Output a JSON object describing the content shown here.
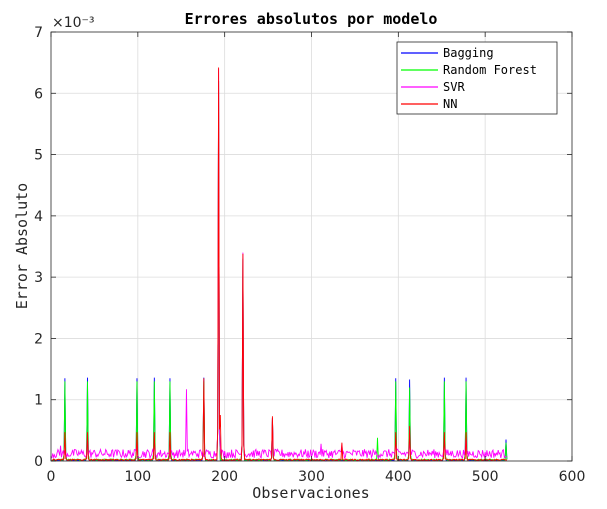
{
  "chart_data": {
    "type": "line",
    "title": "Errores absolutos por modelo",
    "xlabel": "Observaciones",
    "ylabel": "Error Absoluto",
    "y_exponent_label": "×10⁻³",
    "xlim": [
      0,
      600
    ],
    "ylim": [
      0,
      0.007
    ],
    "x_ticks": [
      0,
      100,
      200,
      300,
      400,
      500,
      600
    ],
    "y_ticks": [
      0,
      1,
      2,
      3,
      4,
      5,
      6,
      7
    ],
    "y_tick_scale": 0.001,
    "grid": true,
    "legend_position": "top-right",
    "n_points": 525,
    "series": [
      {
        "name": "Bagging",
        "color": "#0000ff",
        "baseline": 1e-05,
        "spikes": [
          [
            15,
            0.00135
          ],
          [
            41,
            0.00136
          ],
          [
            98,
            0.00135
          ],
          [
            118,
            0.00136
          ],
          [
            136,
            0.00135
          ],
          [
            175,
            0.00136
          ],
          [
            192,
            0.0062
          ],
          [
            220,
            0.0033
          ],
          [
            254,
            0.0007
          ],
          [
            396,
            0.00135
          ],
          [
            412,
            0.00133
          ],
          [
            452,
            0.00136
          ],
          [
            477,
            0.00136
          ],
          [
            523,
            0.00035
          ]
        ]
      },
      {
        "name": "Random Forest",
        "color": "#00ff00",
        "baseline": 2e-05,
        "spikes": [
          [
            15,
            0.0013
          ],
          [
            41,
            0.0013
          ],
          [
            98,
            0.0013
          ],
          [
            118,
            0.0013
          ],
          [
            136,
            0.0013
          ],
          [
            175,
            0.0013
          ],
          [
            192,
            0.0062
          ],
          [
            220,
            0.0033
          ],
          [
            254,
            0.0007
          ],
          [
            375,
            0.00038
          ],
          [
            396,
            0.0013
          ],
          [
            412,
            0.0012
          ],
          [
            452,
            0.0013
          ],
          [
            477,
            0.0013
          ],
          [
            523,
            0.0003
          ]
        ]
      },
      {
        "name": "SVR",
        "color": "#ff00ff",
        "baseline": 0.00012,
        "spikes": [
          [
            10,
            0.00025
          ],
          [
            41,
            0.00035
          ],
          [
            98,
            0.0003
          ],
          [
            118,
            0.0003
          ],
          [
            155,
            0.00117
          ],
          [
            192,
            0.0064
          ],
          [
            220,
            0.0034
          ],
          [
            254,
            0.0007
          ],
          [
            310,
            0.00028
          ],
          [
            334,
            0.00027
          ],
          [
            396,
            0.00035
          ],
          [
            412,
            0.0003
          ],
          [
            452,
            0.0003
          ],
          [
            477,
            0.0004
          ]
        ]
      },
      {
        "name": "NN",
        "color": "#ff0000",
        "baseline": 2e-05,
        "spikes": [
          [
            15,
            0.00047
          ],
          [
            41,
            0.00047
          ],
          [
            98,
            0.00047
          ],
          [
            118,
            0.00047
          ],
          [
            136,
            0.00047
          ],
          [
            175,
            0.00135
          ],
          [
            192,
            0.00642
          ],
          [
            194,
            0.00075
          ],
          [
            220,
            0.00338
          ],
          [
            254,
            0.00073
          ],
          [
            334,
            0.0003
          ],
          [
            396,
            0.00047
          ],
          [
            412,
            0.00057
          ],
          [
            452,
            0.00047
          ],
          [
            477,
            0.00047
          ]
        ]
      }
    ]
  }
}
